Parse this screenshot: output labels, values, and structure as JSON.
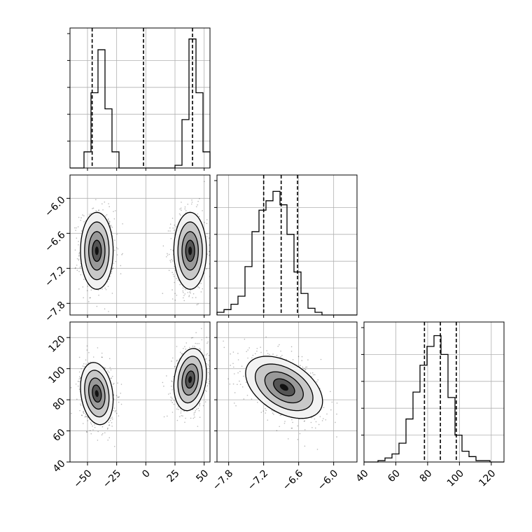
{
  "chart_data": {
    "type": "corner",
    "parameters": [
      {
        "hist": {
          "range": [
            -65,
            55
          ],
          "bins": 20,
          "counts": [
            0,
            0,
            0.12,
            0.56,
            0.88,
            0.44,
            0.12,
            0,
            0,
            0,
            0,
            0,
            0,
            0,
            0,
            0.02,
            0.36,
            0.96,
            0.56,
            0.12
          ],
          "quantiles": [
            -46,
            -2,
            40
          ]
        }
      },
      {
        "hist": {
          "range": [
            -8.0,
            -5.6
          ],
          "bins": 20,
          "counts": [
            0.02,
            0.04,
            0.08,
            0.14,
            0.36,
            0.62,
            0.78,
            0.85,
            0.92,
            0.82,
            0.6,
            0.32,
            0.16,
            0.05,
            0.02,
            0,
            0,
            0,
            0,
            0
          ],
          "quantiles": [
            -7.2,
            -6.9,
            -6.62
          ]
        }
      },
      {
        "hist": {
          "range": [
            40,
            128
          ],
          "bins": 20,
          "counts": [
            0,
            0,
            0.01,
            0.03,
            0.06,
            0.14,
            0.32,
            0.52,
            0.72,
            0.86,
            0.94,
            0.8,
            0.48,
            0.2,
            0.08,
            0.04,
            0.01,
            0.01,
            0,
            0
          ],
          "quantiles": [
            78,
            88,
            98
          ]
        }
      }
    ],
    "panels": [
      {
        "row": 1,
        "col": 0,
        "xlim": [
          -65,
          55
        ],
        "ylim": [
          -8.0,
          -5.6
        ],
        "blobs": [
          {
            "cx": -42,
            "cy": -6.9,
            "sx": 7,
            "sy": 0.33,
            "rho": 0
          },
          {
            "cx": 38,
            "cy": -6.9,
            "sx": 7,
            "sy": 0.33,
            "rho": 0
          }
        ]
      },
      {
        "row": 2,
        "col": 0,
        "xlim": [
          -65,
          55
        ],
        "ylim": [
          40,
          130
        ],
        "blobs": [
          {
            "cx": -42,
            "cy": 84,
            "sx": 7,
            "sy": 10,
            "rho": -0.2
          },
          {
            "cx": 38,
            "cy": 93,
            "sx": 7,
            "sy": 10,
            "rho": 0.2
          }
        ]
      },
      {
        "row": 2,
        "col": 1,
        "xlim": [
          -8.0,
          -5.6
        ],
        "ylim": [
          40,
          130
        ],
        "blobs": [
          {
            "cx": -6.85,
            "cy": 88,
            "sx": 0.33,
            "sy": 10,
            "rho": -0.45
          }
        ]
      }
    ],
    "xticks": [
      {
        "col": 0,
        "values": [
          -50,
          -25,
          0,
          25,
          50
        ],
        "labels": [
          "−50",
          "−25",
          "0",
          "25",
          "50"
        ]
      },
      {
        "col": 1,
        "values": [
          -7.8,
          -7.2,
          -6.6,
          -6.0
        ],
        "labels": [
          "−7.8",
          "−7.2",
          "−6.6",
          "−6.0"
        ]
      },
      {
        "col": 2,
        "values": [
          40,
          60,
          80,
          100,
          120
        ],
        "labels": [
          "40",
          "60",
          "80",
          "100",
          "120"
        ]
      }
    ],
    "yticks": [
      {
        "row": 1,
        "values": [
          -7.8,
          -7.2,
          -6.6,
          -6.0
        ],
        "labels": [
          "−7.8",
          "−7.2",
          "−6.6",
          "−6.0"
        ]
      },
      {
        "row": 2,
        "values": [
          40,
          60,
          80,
          100,
          120
        ],
        "labels": [
          "40",
          "60",
          "80",
          "100",
          "120"
        ]
      }
    ],
    "grid": true,
    "colors": {
      "line": "#000000",
      "grid": "#b0b0b0",
      "points": "#000000",
      "background": "#ffffff"
    }
  }
}
